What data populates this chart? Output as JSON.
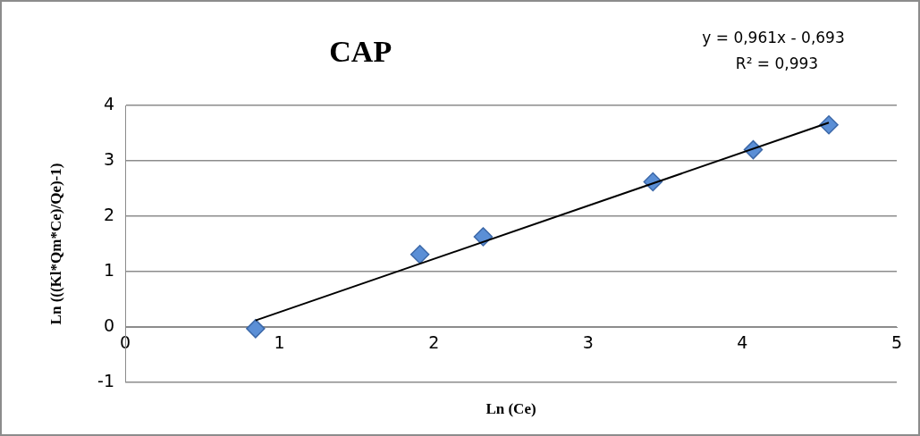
{
  "chart_data": {
    "type": "scatter",
    "title": "CAP",
    "xlabel": "Ln (Ce)",
    "ylabel": "Ln (((Kl*Qm*Ce)/Qe)-1)",
    "annotations": [
      "y = 0,961x - 0,693",
      "R² = 0,993"
    ],
    "series": [
      {
        "color": "#5b8fd6",
        "x": [
          0.845,
          1.91,
          2.32,
          3.42,
          4.07,
          4.56
        ],
        "values": [
          -0.03,
          1.31,
          1.63,
          2.62,
          3.2,
          3.65
        ],
        "marker": "diamond"
      },
      {
        "type": "line",
        "color": "#000000",
        "x": [
          0.845,
          4.56
        ],
        "values": [
          0.119,
          3.689
        ],
        "marker": "none"
      }
    ],
    "xlim": [
      0,
      5
    ],
    "xticks": [
      0,
      1,
      2,
      3,
      4,
      5
    ],
    "ylim": [
      -1,
      4
    ],
    "yticks": [
      -1,
      0,
      1,
      2,
      3,
      4
    ],
    "grid": "y"
  }
}
